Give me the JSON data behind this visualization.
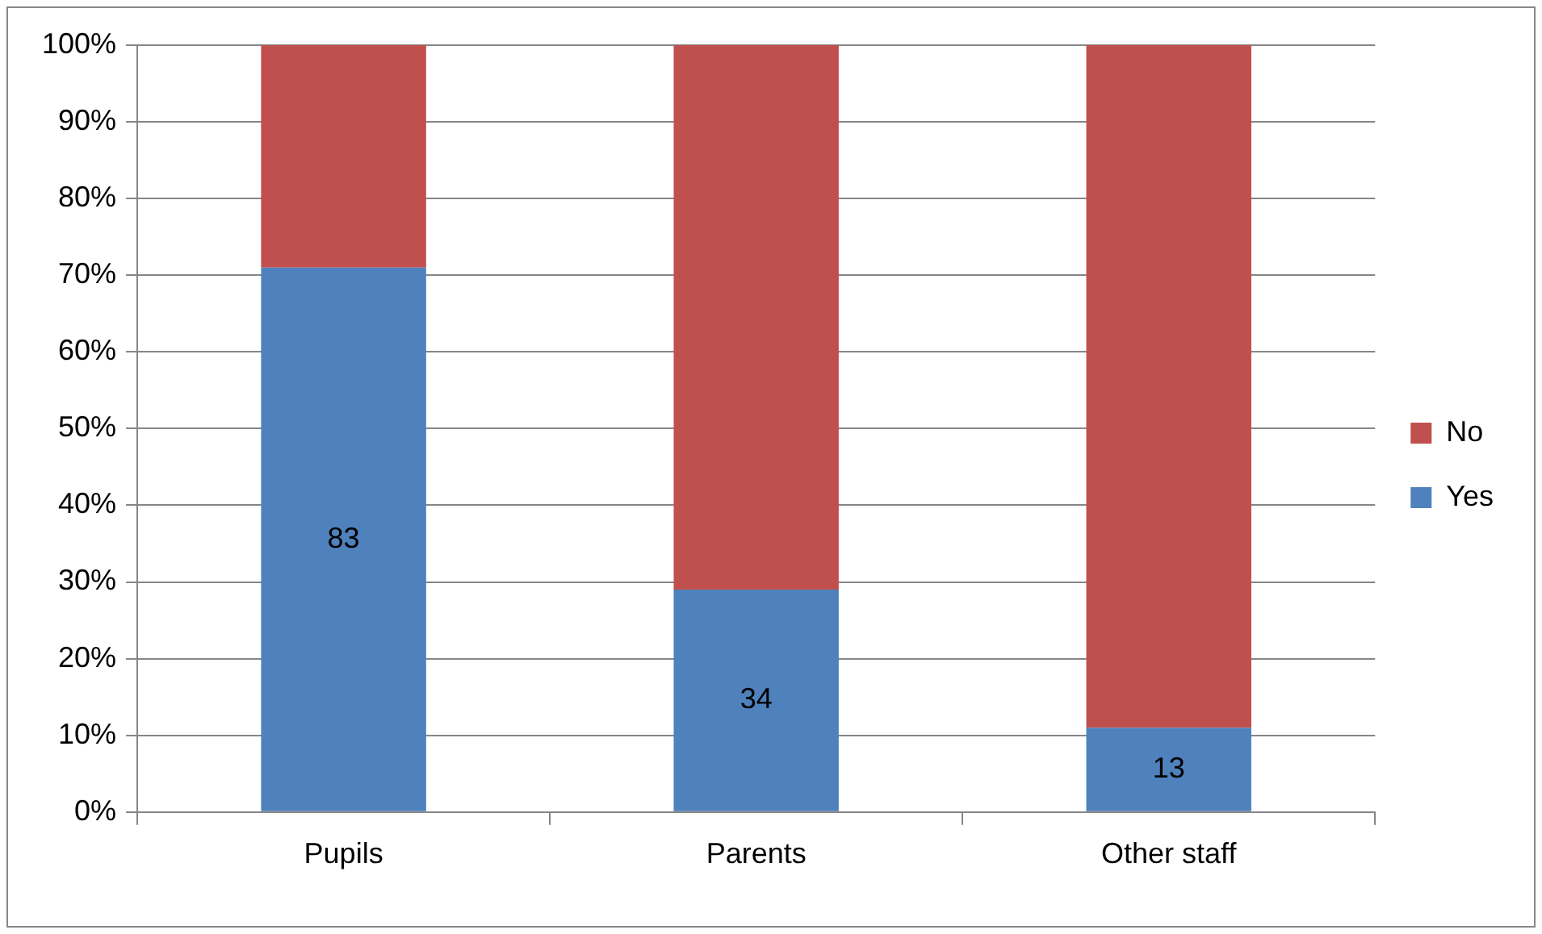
{
  "chart_data": {
    "type": "bar",
    "stacked": true,
    "categories": [
      "Pupils",
      "Parents",
      "Other staff"
    ],
    "series": [
      {
        "name": "Yes",
        "color": "#4f81bd",
        "values": [
          71,
          29,
          11
        ]
      },
      {
        "name": "No",
        "color": "#c0504d",
        "values": [
          29,
          71,
          89
        ]
      }
    ],
    "ylim": [
      0,
      100
    ],
    "yticks": [
      {
        "value": 0,
        "label": "0%"
      },
      {
        "value": 10,
        "label": "10%"
      },
      {
        "value": 20,
        "label": "20%"
      },
      {
        "value": 30,
        "label": "30%"
      },
      {
        "value": 40,
        "label": "40%"
      },
      {
        "value": 50,
        "label": "50%"
      },
      {
        "value": 60,
        "label": "60%"
      },
      {
        "value": 70,
        "label": "70%"
      },
      {
        "value": 80,
        "label": "80%"
      },
      {
        "value": 90,
        "label": "90%"
      },
      {
        "value": 100,
        "label": "100%"
      }
    ],
    "annotations": [
      "83",
      "34",
      "13"
    ],
    "grid": "y",
    "legend": "right"
  }
}
